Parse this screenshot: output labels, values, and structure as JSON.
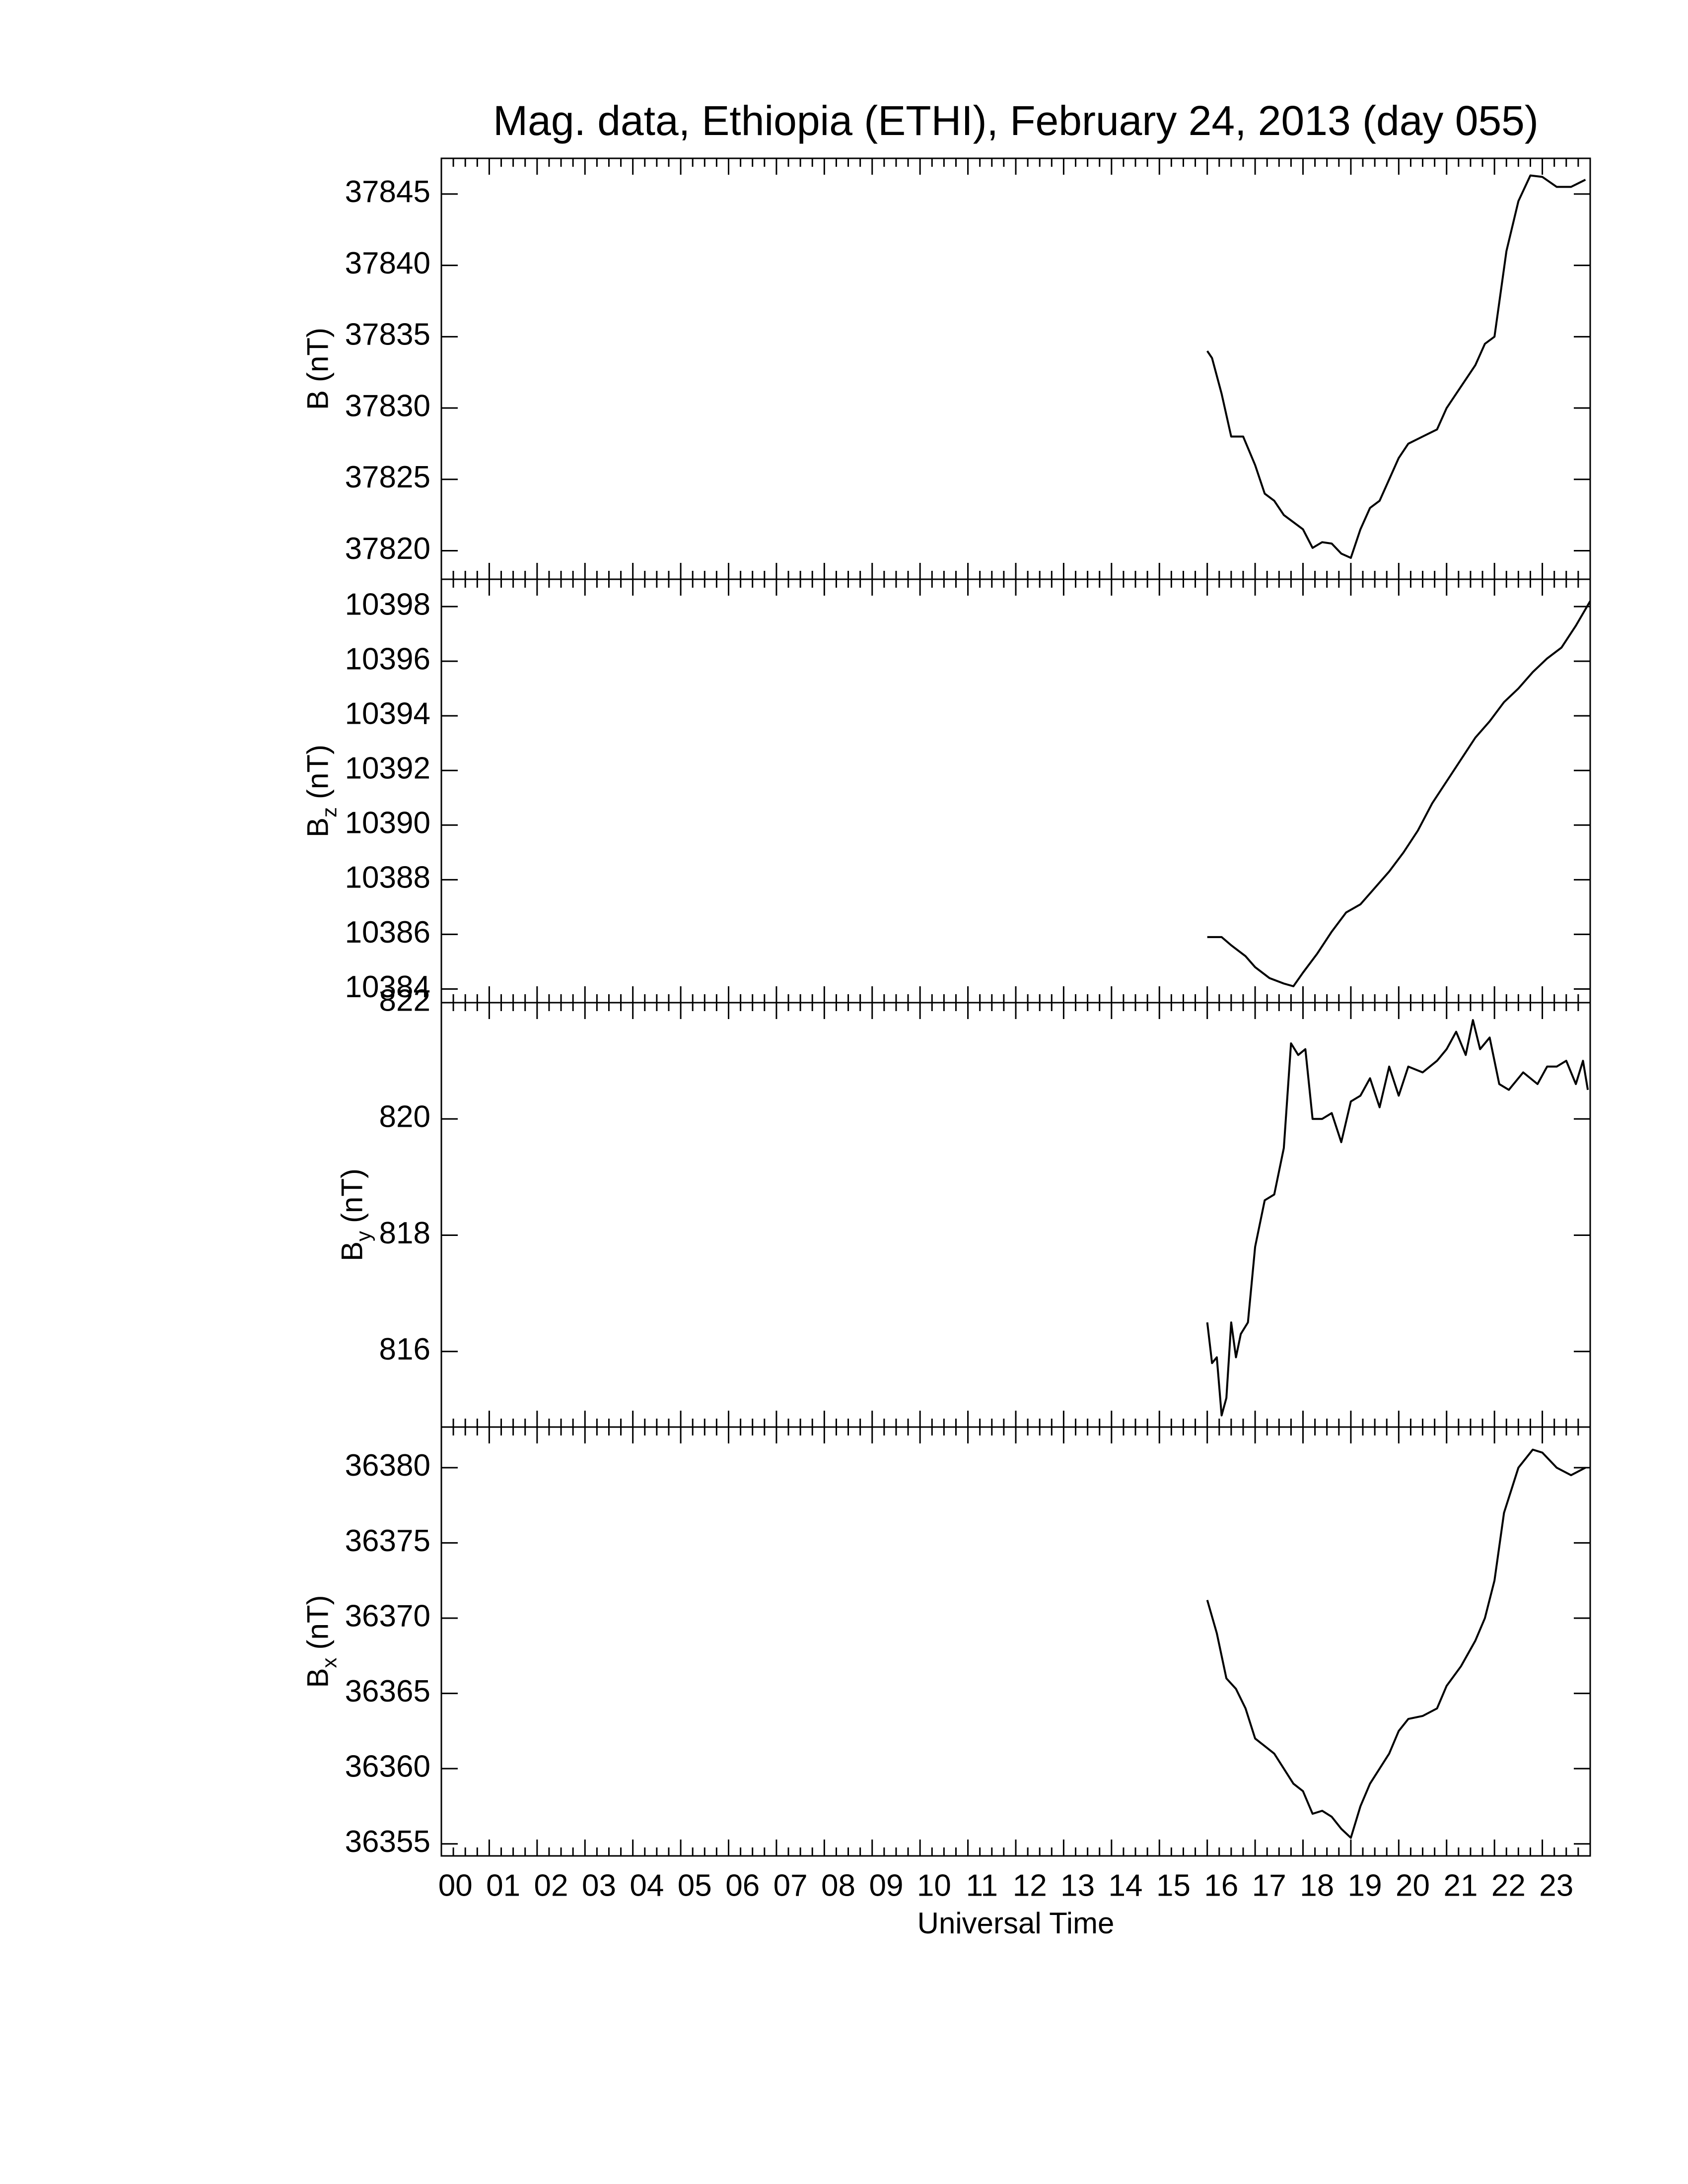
{
  "title": "Mag. data, Ethiopia (ETHI), February 24, 2013 (day 055)",
  "chart_data": [
    {
      "type": "line",
      "ylabel": {
        "text": "B",
        "unit": "(nT)"
      },
      "xlim": [
        0,
        24
      ],
      "xticks": [
        0,
        1,
        2,
        3,
        4,
        5,
        6,
        7,
        8,
        9,
        10,
        11,
        12,
        13,
        14,
        15,
        16,
        17,
        18,
        19,
        20,
        21,
        22,
        23
      ],
      "ylim": [
        37818,
        37847.5
      ],
      "yticks": [
        37820,
        37825,
        37830,
        37835,
        37840,
        37845
      ],
      "color": "#000000",
      "x": [
        16.0,
        16.1,
        16.3,
        16.5,
        16.75,
        17.0,
        17.2,
        17.4,
        17.6,
        17.8,
        18.0,
        18.2,
        18.4,
        18.6,
        18.8,
        19.0,
        19.2,
        19.4,
        19.6,
        19.8,
        20.0,
        20.2,
        20.5,
        20.8,
        21.0,
        21.3,
        21.6,
        21.8,
        22.0,
        22.25,
        22.5,
        22.75,
        23.0,
        23.3,
        23.6,
        23.9
      ],
      "values": [
        37834,
        37833.5,
        37831,
        37828,
        37828,
        37826,
        37824,
        37823.5,
        37822.5,
        37822,
        37821.5,
        37820.2,
        37820.6,
        37820.5,
        37819.8,
        37819.5,
        37821.5,
        37823,
        37823.5,
        37825,
        37826.5,
        37827.5,
        37828,
        37828.5,
        37830,
        37831.5,
        37833,
        37834.5,
        37835,
        37841,
        37844.5,
        37846.3,
        37846.2,
        37845.5,
        37845.5,
        37846
      ]
    },
    {
      "type": "line",
      "ylabel": {
        "text": "B",
        "sub": "z",
        "unit": "(nT)"
      },
      "xlim": [
        0,
        24
      ],
      "xticks": [
        0,
        1,
        2,
        3,
        4,
        5,
        6,
        7,
        8,
        9,
        10,
        11,
        12,
        13,
        14,
        15,
        16,
        17,
        18,
        19,
        20,
        21,
        22,
        23
      ],
      "ylim": [
        10383.5,
        10399
      ],
      "yticks": [
        10384,
        10386,
        10388,
        10390,
        10392,
        10394,
        10396,
        10398
      ],
      "color": "#000000",
      "x": [
        16.0,
        16.3,
        16.5,
        16.8,
        17.0,
        17.3,
        17.6,
        17.8,
        18.0,
        18.3,
        18.6,
        18.9,
        19.2,
        19.5,
        19.8,
        20.1,
        20.4,
        20.7,
        21.0,
        21.3,
        21.6,
        21.9,
        22.2,
        22.5,
        22.8,
        23.1,
        23.4,
        23.7,
        24.0
      ],
      "values": [
        10385.9,
        10385.9,
        10385.6,
        10385.2,
        10384.8,
        10384.4,
        10384.2,
        10384.1,
        10384.6,
        10385.3,
        10386.1,
        10386.8,
        10387.1,
        10387.7,
        10388.3,
        10389.0,
        10389.8,
        10390.8,
        10391.6,
        10392.4,
        10393.2,
        10393.8,
        10394.5,
        10395.0,
        10395.6,
        10396.1,
        10396.5,
        10397.3,
        10398.2
      ]
    },
    {
      "type": "line",
      "ylabel": {
        "text": "B",
        "sub": "y",
        "unit": "(nT)"
      },
      "xlim": [
        0,
        24
      ],
      "xticks": [
        0,
        1,
        2,
        3,
        4,
        5,
        6,
        7,
        8,
        9,
        10,
        11,
        12,
        13,
        14,
        15,
        16,
        17,
        18,
        19,
        20,
        21,
        22,
        23
      ],
      "ylim": [
        814.7,
        822
      ],
      "yticks": [
        816,
        818,
        820,
        822
      ],
      "color": "#000000",
      "x": [
        16.0,
        16.1,
        16.2,
        16.3,
        16.4,
        16.5,
        16.6,
        16.7,
        16.85,
        17.0,
        17.2,
        17.4,
        17.6,
        17.75,
        17.9,
        18.05,
        18.2,
        18.4,
        18.6,
        18.8,
        19.0,
        19.2,
        19.4,
        19.6,
        19.8,
        20.0,
        20.2,
        20.5,
        20.8,
        21.0,
        21.2,
        21.4,
        21.55,
        21.7,
        21.9,
        22.1,
        22.3,
        22.6,
        22.9,
        23.1,
        23.3,
        23.5,
        23.7,
        23.85,
        23.95
      ],
      "values": [
        816.5,
        815.8,
        815.9,
        814.9,
        815.2,
        816.5,
        815.9,
        816.3,
        816.5,
        817.8,
        818.6,
        818.7,
        819.5,
        821.3,
        821.1,
        821.2,
        820.0,
        820.0,
        820.1,
        819.6,
        820.3,
        820.4,
        820.7,
        820.2,
        820.9,
        820.4,
        820.9,
        820.8,
        821.0,
        821.2,
        821.5,
        821.1,
        821.7,
        821.2,
        821.4,
        820.6,
        820.5,
        820.8,
        820.6,
        820.9,
        820.9,
        821.0,
        820.6,
        821.0,
        820.5
      ]
    },
    {
      "type": "line",
      "ylabel": {
        "text": "B",
        "sub": "x",
        "unit": "(nT)"
      },
      "xlabel": "Universal Time",
      "xlim": [
        0,
        24
      ],
      "xticks": [
        {
          "value": 0,
          "label": "00"
        },
        {
          "value": 1,
          "label": "01"
        },
        {
          "value": 2,
          "label": "02"
        },
        {
          "value": 3,
          "label": "03"
        },
        {
          "value": 4,
          "label": "04"
        },
        {
          "value": 5,
          "label": "05"
        },
        {
          "value": 6,
          "label": "06"
        },
        {
          "value": 7,
          "label": "07"
        },
        {
          "value": 8,
          "label": "08"
        },
        {
          "value": 9,
          "label": "09"
        },
        10,
        11,
        12,
        13,
        14,
        15,
        16,
        17,
        18,
        19,
        20,
        21,
        22,
        23
      ],
      "ylim": [
        36354.2,
        36382.7
      ],
      "yticks": [
        36355,
        36360,
        36365,
        36370,
        36375,
        36380
      ],
      "color": "#000000",
      "x": [
        16.0,
        16.2,
        16.4,
        16.6,
        16.8,
        17.0,
        17.2,
        17.4,
        17.6,
        17.8,
        18.0,
        18.2,
        18.4,
        18.6,
        18.8,
        19.0,
        19.2,
        19.4,
        19.6,
        19.8,
        20.0,
        20.2,
        20.5,
        20.8,
        21.0,
        21.3,
        21.6,
        21.8,
        22.0,
        22.2,
        22.5,
        22.8,
        23.0,
        23.3,
        23.6,
        23.9
      ],
      "values": [
        36371.2,
        36369,
        36366,
        36365.3,
        36364,
        36362,
        36361.5,
        36361,
        36360,
        36359,
        36358.5,
        36357,
        36357.2,
        36356.8,
        36356,
        36355.4,
        36357.5,
        36359,
        36360,
        36361,
        36362.5,
        36363.3,
        36363.5,
        36364,
        36365.5,
        36366.8,
        36368.5,
        36370,
        36372.5,
        36377,
        36380,
        36381.2,
        36381,
        36380,
        36379.5,
        36380
      ]
    }
  ]
}
